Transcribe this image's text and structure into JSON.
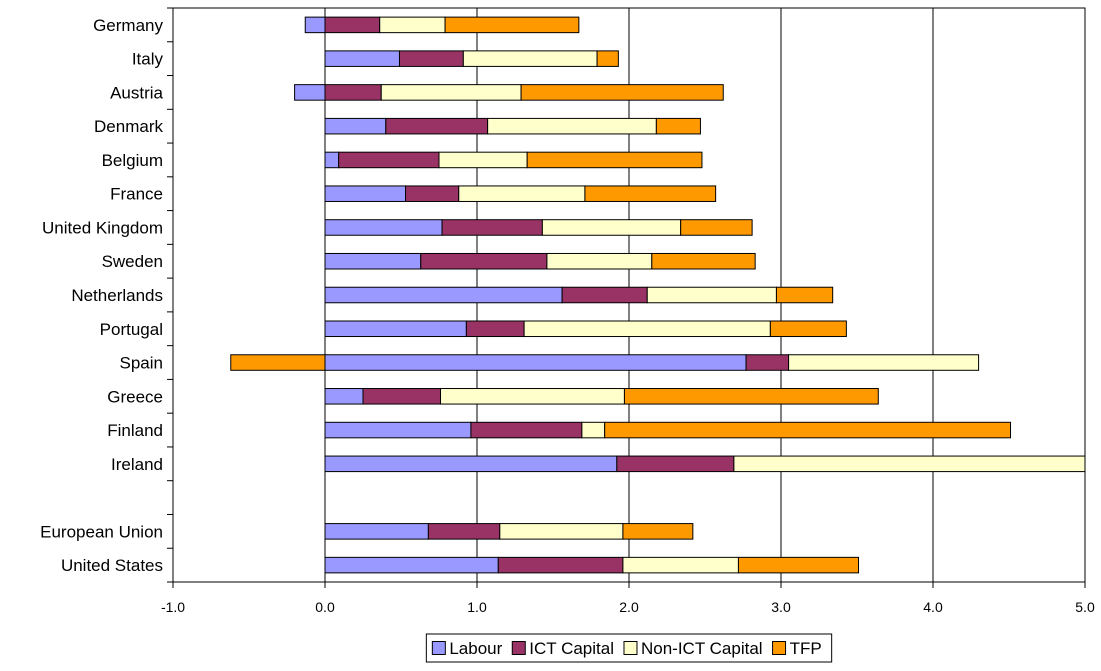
{
  "chart_data": {
    "type": "bar",
    "orientation": "horizontal",
    "stacked": true,
    "title": "",
    "xlabel": "",
    "ylabel": "",
    "xlim": [
      -1.0,
      5.0
    ],
    "x_ticks": [
      "-1.0",
      "0.0",
      "1.0",
      "2.0",
      "3.0",
      "4.0",
      "5.0"
    ],
    "grid": "vertical",
    "legend_position": "bottom",
    "categories": [
      "Germany",
      "Italy",
      "Austria",
      "Denmark",
      "Belgium",
      "France",
      "United Kingdom",
      "Sweden",
      "Netherlands",
      "Portugal",
      "Spain",
      "Greece",
      "Finland",
      "Ireland",
      "",
      "European Union",
      "United States"
    ],
    "series": [
      {
        "name": "Labour",
        "color": "#9999ff",
        "values": [
          -0.13,
          0.49,
          -0.2,
          0.4,
          0.09,
          0.53,
          0.77,
          0.63,
          1.56,
          0.93,
          2.77,
          0.25,
          0.96,
          1.92,
          null,
          0.68,
          1.14
        ]
      },
      {
        "name": "ICT Capital",
        "color": "#993366",
        "values": [
          0.36,
          0.42,
          0.37,
          0.67,
          0.66,
          0.35,
          0.66,
          0.83,
          0.56,
          0.38,
          0.28,
          0.51,
          0.73,
          0.77,
          null,
          0.47,
          0.82
        ]
      },
      {
        "name": "Non-ICT Capital",
        "color": "#ffffcc",
        "values": [
          0.43,
          0.88,
          0.92,
          1.11,
          0.58,
          0.83,
          0.91,
          0.69,
          0.85,
          1.62,
          1.25,
          1.21,
          0.15,
          2.33,
          null,
          0.81,
          0.76
        ]
      },
      {
        "name": "TFP",
        "color": "#ff9900",
        "values": [
          0.88,
          0.14,
          1.33,
          0.29,
          1.15,
          0.86,
          0.47,
          0.68,
          0.37,
          0.5,
          -0.62,
          1.67,
          2.67,
          0.0,
          null,
          0.46,
          0.79
        ]
      }
    ]
  }
}
